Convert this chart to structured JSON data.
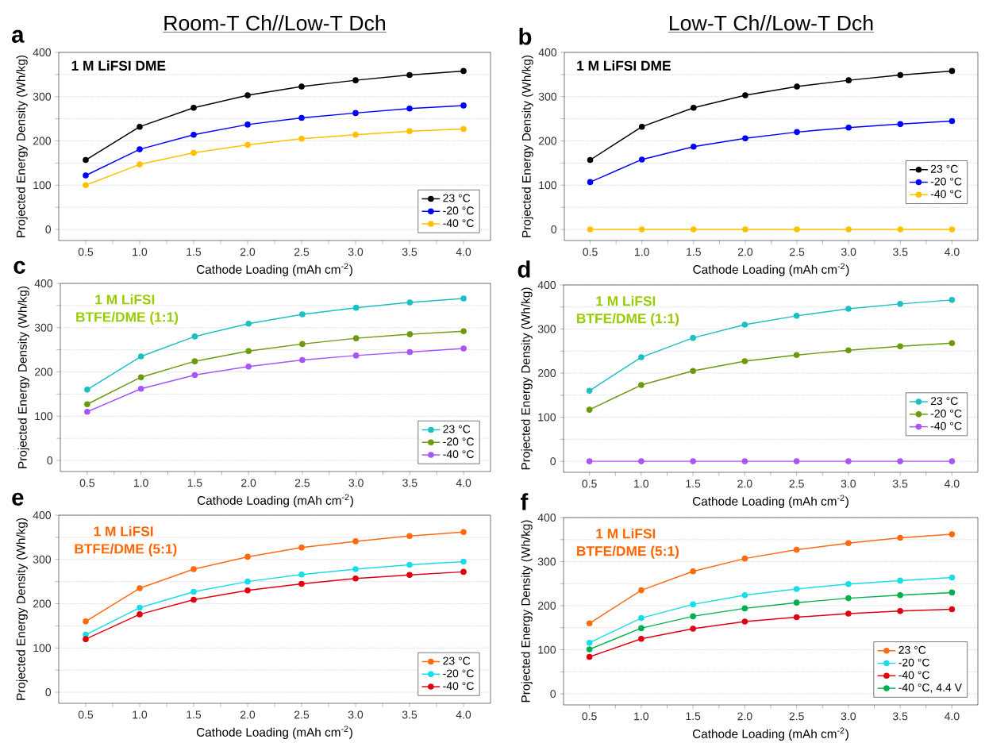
{
  "chart_data": [
    {
      "type": "line",
      "title": "Room-T Ch//Low-T Dch",
      "xlabel": "Cathode Loading (mAh cm$^{-2}$)",
      "ylabel": "Projected Energy Density (Wh/kg)",
      "annotations": [
        "a",
        "1 M LiFSI DME"
      ],
      "x": [
        0.5,
        1.0,
        1.5,
        2.0,
        2.5,
        3.0,
        3.5,
        4.0
      ],
      "series": [
        {
          "name": "23 °C",
          "color": "#000000",
          "values": [
            157,
            232,
            275,
            303,
            323,
            337,
            349,
            358
          ]
        },
        {
          "name": "-20 °C",
          "color": "#0000ff",
          "values": [
            122,
            181,
            214,
            237,
            252,
            263,
            273,
            280
          ]
        },
        {
          "name": "-40 °C",
          "color": "#ffc000",
          "values": [
            100,
            147,
            173,
            191,
            205,
            214,
            222,
            227
          ]
        }
      ],
      "xlim": [
        0.25,
        4.25
      ],
      "ylim": [
        -25,
        400
      ],
      "xticks": [
        0.5,
        {
          "value": 0.75,
          "label": null
        },
        {
          "value": 1.0,
          "label": "1.0"
        },
        {
          "value": 1.25,
          "label": null
        },
        1.5,
        {
          "value": 1.75,
          "label": null
        },
        {
          "value": 2.0,
          "label": "2.0"
        },
        {
          "value": 2.25,
          "label": null
        },
        2.5,
        {
          "value": 2.75,
          "label": null
        },
        {
          "value": 3.0,
          "label": "3.0"
        },
        {
          "value": 3.25,
          "label": null
        },
        3.5,
        {
          "value": 3.75,
          "label": null
        },
        {
          "value": 4.0,
          "label": "4.0"
        }
      ],
      "yticks": [
        0,
        {
          "value": 50,
          "label": null
        },
        100,
        {
          "value": 150,
          "label": null
        },
        200,
        {
          "value": 250,
          "label": null
        },
        300,
        {
          "value": 350,
          "label": null
        },
        400
      ],
      "grid": "y",
      "legend": "bottom right",
      "marker": "circle"
    },
    {
      "type": "line",
      "title": "Low-T Ch//Low-T Dch",
      "xlabel": "Cathode Loading (mAh cm$^{-2}$)",
      "ylabel": "Projected Energy Density (Wh/kg)",
      "annotations": [
        "b",
        "1 M LiFSI DME"
      ],
      "x": [
        0.5,
        1.0,
        1.5,
        2.0,
        2.5,
        3.0,
        3.5,
        4.0
      ],
      "series": [
        {
          "name": "23 °C",
          "color": "#000000",
          "values": [
            157,
            232,
            275,
            303,
            323,
            337,
            349,
            358
          ]
        },
        {
          "name": "-20 °C",
          "color": "#0000ff",
          "values": [
            107,
            158,
            187,
            206,
            220,
            230,
            238,
            245
          ]
        },
        {
          "name": "-40 °C",
          "color": "#ffc000",
          "values": [
            0,
            0,
            0,
            0,
            0,
            0,
            0,
            0
          ]
        }
      ],
      "xlim": [
        0.25,
        4.25
      ],
      "ylim": [
        -25,
        400
      ],
      "xticks": [
        0.5,
        {
          "value": 0.75,
          "label": null
        },
        {
          "value": 1.0,
          "label": "1.0"
        },
        {
          "value": 1.25,
          "label": null
        },
        1.5,
        {
          "value": 1.75,
          "label": null
        },
        {
          "value": 2.0,
          "label": "2.0"
        },
        {
          "value": 2.25,
          "label": null
        },
        2.5,
        {
          "value": 2.75,
          "label": null
        },
        {
          "value": 3.0,
          "label": "3.0"
        },
        {
          "value": 3.25,
          "label": null
        },
        3.5,
        {
          "value": 3.75,
          "label": null
        },
        {
          "value": 4.0,
          "label": "4.0"
        }
      ],
      "yticks": [
        0,
        {
          "value": 50,
          "label": null
        },
        100,
        {
          "value": 150,
          "label": null
        },
        200,
        {
          "value": 250,
          "label": null
        },
        300,
        {
          "value": 350,
          "label": null
        },
        400
      ],
      "grid": "y",
      "legend": "right",
      "marker": "circle"
    },
    {
      "type": "line",
      "xlabel": "Cathode Loading (mAh cm$^{-2}$)",
      "ylabel": "Projected Energy Density (Wh/kg)",
      "annotations": [
        "c",
        "1 M LiFSI",
        "BTFE/DME (1:1)"
      ],
      "x": [
        0.5,
        1.0,
        1.5,
        2.0,
        2.5,
        3.0,
        3.5,
        4.0
      ],
      "series": [
        {
          "name": "23 °C",
          "color": "#1cbfc4",
          "values": [
            160,
            235,
            280,
            309,
            330,
            345,
            357,
            366
          ]
        },
        {
          "name": "-20 °C",
          "color": "#6b9a0c",
          "values": [
            127,
            188,
            224,
            247,
            263,
            276,
            285,
            292
          ]
        },
        {
          "name": "-40 °C",
          "color": "#a855f7",
          "values": [
            110,
            162,
            193,
            212,
            227,
            237,
            245,
            253
          ]
        }
      ],
      "xlim": [
        0.25,
        4.25
      ],
      "ylim": [
        -25,
        400
      ],
      "xticks": [
        0.5,
        {
          "value": 0.75,
          "label": null
        },
        {
          "value": 1.0,
          "label": "1.0"
        },
        {
          "value": 1.25,
          "label": null
        },
        1.5,
        {
          "value": 1.75,
          "label": null
        },
        {
          "value": 2.0,
          "label": "2.0"
        },
        {
          "value": 2.25,
          "label": null
        },
        2.5,
        {
          "value": 2.75,
          "label": null
        },
        {
          "value": 3.0,
          "label": "3.0"
        },
        {
          "value": 3.25,
          "label": null
        },
        3.5,
        {
          "value": 3.75,
          "label": null
        },
        {
          "value": 4.0,
          "label": "4.0"
        }
      ],
      "yticks": [
        0,
        {
          "value": 50,
          "label": null
        },
        100,
        {
          "value": 150,
          "label": null
        },
        200,
        {
          "value": 250,
          "label": null
        },
        300,
        {
          "value": 350,
          "label": null
        },
        400
      ],
      "grid": "y",
      "legend": "bottom right",
      "marker": "circle"
    },
    {
      "type": "line",
      "xlabel": "Cathode Loading (mAh cm$^{-2}$)",
      "ylabel": "Projected Energy Density (Wh/kg)",
      "annotations": [
        "d",
        "1 M LiFSI",
        "BTFE/DME (1:1)"
      ],
      "x": [
        0.5,
        1.0,
        1.5,
        2.0,
        2.5,
        3.0,
        3.5,
        4.0
      ],
      "series": [
        {
          "name": "23 °C",
          "color": "#1cbfc4",
          "values": [
            160,
            236,
            280,
            310,
            330,
            346,
            357,
            366
          ]
        },
        {
          "name": "-20 °C",
          "color": "#6b9a0c",
          "values": [
            117,
            173,
            205,
            227,
            241,
            252,
            261,
            268
          ]
        },
        {
          "name": "-40 °C",
          "color": "#a855f7",
          "values": [
            0,
            0,
            0,
            0,
            0,
            0,
            0,
            0
          ]
        }
      ],
      "xlim": [
        0.25,
        4.25
      ],
      "ylim": [
        -25,
        400
      ],
      "xticks": [
        0.5,
        {
          "value": 0.75,
          "label": null
        },
        {
          "value": 1.0,
          "label": "1.0"
        },
        {
          "value": 1.25,
          "label": null
        },
        1.5,
        {
          "value": 1.75,
          "label": null
        },
        {
          "value": 2.0,
          "label": "2.0"
        },
        {
          "value": 2.25,
          "label": null
        },
        2.5,
        {
          "value": 2.75,
          "label": null
        },
        {
          "value": 3.0,
          "label": "3.0"
        },
        {
          "value": 3.25,
          "label": null
        },
        3.5,
        {
          "value": 3.75,
          "label": null
        },
        {
          "value": 4.0,
          "label": "4.0"
        }
      ],
      "yticks": [
        0,
        {
          "value": 50,
          "label": null
        },
        100,
        {
          "value": 150,
          "label": null
        },
        200,
        {
          "value": 250,
          "label": null
        },
        300,
        {
          "value": 350,
          "label": null
        },
        400
      ],
      "grid": "y",
      "legend": "right",
      "marker": "circle"
    },
    {
      "type": "line",
      "xlabel": "Cathode Loading (mAh cm$^{-2}$)",
      "ylabel": "Projected Energy Density (Wh/kg)",
      "annotations": [
        "e",
        "1 M LiFSI",
        "BTFE/DME (5:1)"
      ],
      "x": [
        0.5,
        1.0,
        1.5,
        2.0,
        2.5,
        3.0,
        3.5,
        4.0
      ],
      "series": [
        {
          "name": "23 °C",
          "color": "#ff6a10",
          "values": [
            160,
            235,
            278,
            306,
            327,
            341,
            353,
            362
          ]
        },
        {
          "name": "-20 °C",
          "color": "#18dde6",
          "values": [
            130,
            191,
            227,
            250,
            266,
            278,
            288,
            295
          ]
        },
        {
          "name": "-40 °C",
          "color": "#e00010",
          "values": [
            120,
            176,
            209,
            230,
            245,
            257,
            265,
            272
          ]
        }
      ],
      "xlim": [
        0.25,
        4.25
      ],
      "ylim": [
        -25,
        400
      ],
      "xticks": [
        0.5,
        {
          "value": 0.75,
          "label": null
        },
        {
          "value": 1.0,
          "label": "1.0"
        },
        {
          "value": 1.25,
          "label": null
        },
        1.5,
        {
          "value": 1.75,
          "label": null
        },
        {
          "value": 2.0,
          "label": "2.0"
        },
        {
          "value": 2.25,
          "label": null
        },
        2.5,
        {
          "value": 2.75,
          "label": null
        },
        {
          "value": 3.0,
          "label": "3.0"
        },
        {
          "value": 3.25,
          "label": null
        },
        3.5,
        {
          "value": 3.75,
          "label": null
        },
        {
          "value": 4.0,
          "label": "4.0"
        }
      ],
      "yticks": [
        0,
        {
          "value": 50,
          "label": null
        },
        100,
        {
          "value": 150,
          "label": null
        },
        200,
        {
          "value": 250,
          "label": null
        },
        300,
        {
          "value": 350,
          "label": null
        },
        400
      ],
      "grid": "y",
      "legend": "bottom right",
      "marker": "circle"
    },
    {
      "type": "line",
      "xlabel": "Cathode Loading (mAh cm$^{-2}$)",
      "ylabel": "Projected Energy Density (Wh/kg)",
      "annotations": [
        "f",
        "1 M LiFSI",
        "BTFE/DME (5:1)"
      ],
      "x": [
        0.5,
        1.0,
        1.5,
        2.0,
        2.5,
        3.0,
        3.5,
        4.0
      ],
      "series": [
        {
          "name": "23 °C",
          "color": "#ff6a10",
          "values": [
            160,
            235,
            278,
            307,
            327,
            342,
            354,
            362
          ]
        },
        {
          "name": "-20 °C",
          "color": "#18dde6",
          "values": [
            116,
            172,
            203,
            224,
            238,
            249,
            257,
            264
          ]
        },
        {
          "name": "-40 °C",
          "color": "#e00010",
          "values": [
            84,
            125,
            148,
            164,
            174,
            182,
            188,
            192
          ]
        },
        {
          "name": "-40 °C, 4.4 V",
          "color": "#00b050",
          "values": [
            101,
            149,
            176,
            194,
            207,
            217,
            224,
            230
          ]
        }
      ],
      "xlim": [
        0.25,
        4.25
      ],
      "ylim": [
        -25,
        400
      ],
      "xticks": [
        0.5,
        {
          "value": 0.75,
          "label": null
        },
        {
          "value": 1.0,
          "label": "1.0"
        },
        {
          "value": 1.25,
          "label": null
        },
        1.5,
        {
          "value": 1.75,
          "label": null
        },
        {
          "value": 2.0,
          "label": "2.0"
        },
        {
          "value": 2.25,
          "label": null
        },
        2.5,
        {
          "value": 2.75,
          "label": null
        },
        {
          "value": 3.0,
          "label": "3.0"
        },
        {
          "value": 3.25,
          "label": null
        },
        3.5,
        {
          "value": 3.75,
          "label": null
        },
        {
          "value": 4.0,
          "label": "4.0"
        }
      ],
      "yticks": [
        0,
        {
          "value": 50,
          "label": null
        },
        100,
        {
          "value": 150,
          "label": null
        },
        200,
        {
          "value": 250,
          "label": null
        },
        300,
        {
          "value": 350,
          "label": null
        },
        400
      ],
      "grid": "y",
      "legend": "bottom right",
      "marker": "circle"
    }
  ]
}
